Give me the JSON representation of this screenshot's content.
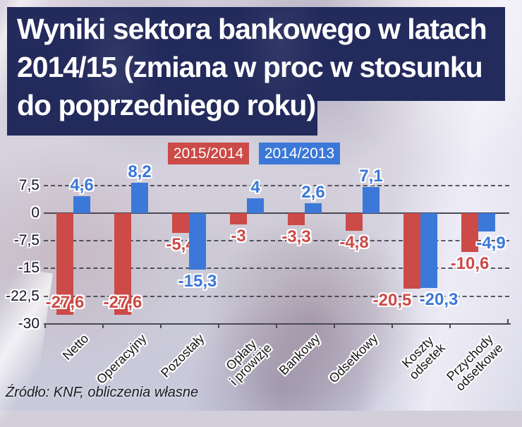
{
  "title": {
    "lines": [
      "Wyniki sektora bankowego w latach",
      "2014/15 (zmiana w proc w stosunku",
      "do poprzedniego roku)"
    ]
  },
  "legend": [
    {
      "label": "2015/2014",
      "color": "#cc4a47"
    },
    {
      "label": "2014/2013",
      "color": "#3b78d8"
    }
  ],
  "source": "Źródło: KNF, obliczenia własne",
  "colors": {
    "series_red": "#cc4a47",
    "series_blue": "#3b78d8",
    "title_panel": "#232a5c",
    "axis": "#4a4a54"
  },
  "chart_data": {
    "type": "bar",
    "title": "Wyniki sektora bankowego w latach 2014/15 (zmiana w proc w stosunku do poprzedniego roku)",
    "categories": [
      "Netto",
      "Operacyjny",
      "Pozostały",
      "Opłaty\ni prowizje",
      "Bankowy",
      "Odsetkowy",
      "Koszty\nodsetek",
      "Przychody\nodsetkowe"
    ],
    "series": [
      {
        "name": "2015/2014",
        "color": "#cc4a47",
        "values": [
          -27.6,
          -27.6,
          -5.4,
          -3,
          -3.3,
          -4.8,
          -20.5,
          -10.6
        ],
        "labels": [
          "-27,6",
          "-27,6",
          "-5,4",
          "-3",
          "-3,3",
          "-4,8",
          "-20,5",
          "-10,6"
        ],
        "label_inside": [
          true,
          true,
          false,
          false,
          false,
          false,
          false,
          false
        ],
        "label_dx": [
          0,
          0,
          0,
          0,
          0,
          0,
          -28,
          0
        ]
      },
      {
        "name": "2014/2013",
        "color": "#3b78d8",
        "values": [
          4.6,
          8.2,
          -15.3,
          4,
          2.6,
          7.1,
          -20.3,
          -4.9
        ],
        "labels": [
          "4,6",
          "8,2",
          "-15,3",
          "4",
          "2,6",
          "7,1",
          "-20,3",
          "-4,9"
        ],
        "label_inside": [
          false,
          false,
          false,
          false,
          false,
          false,
          false,
          false
        ],
        "label_dx": [
          0,
          0,
          0,
          0,
          0,
          0,
          14,
          6
        ]
      }
    ],
    "y_ticks": [
      {
        "v": 7.5,
        "label": "7,5"
      },
      {
        "v": 0,
        "label": "0"
      },
      {
        "v": -7.5,
        "label": "-7,5"
      },
      {
        "v": -15,
        "label": "-15"
      },
      {
        "v": -22.5,
        "label": "-22,5"
      },
      {
        "v": -30,
        "label": "-30"
      }
    ],
    "ylim": [
      -30,
      10
    ],
    "grid": true,
    "legend_position": "top",
    "xlabel": "",
    "ylabel": ""
  }
}
